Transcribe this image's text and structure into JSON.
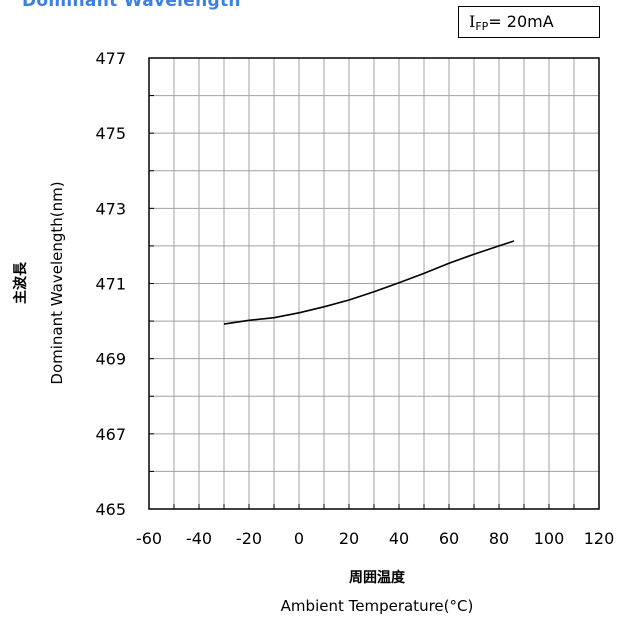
{
  "title": "Dominant Wavelength",
  "condition": {
    "symbol": "I",
    "subscript": "FP",
    "value": "= 20mA"
  },
  "chart_data": {
    "type": "line",
    "title": "Dominant Wavelength",
    "xlabel": "Ambient Temperature(°C)",
    "xlabel_jp": "周囲温度",
    "ylabel": "Dominant Wavelength(nm)",
    "ylabel_jp": "主波長",
    "xlim": [
      -60,
      120
    ],
    "ylim": [
      465,
      477
    ],
    "xticks": [
      -60,
      -40,
      -20,
      0,
      20,
      40,
      60,
      80,
      100,
      120
    ],
    "yticks": [
      465,
      467,
      469,
      471,
      473,
      475,
      477
    ],
    "grid": true,
    "series": [
      {
        "x": [
          -30,
          -20,
          -10,
          0,
          10,
          20,
          30,
          40,
          50,
          60,
          70,
          80,
          86
        ],
        "y": [
          469.92,
          470.02,
          470.09,
          470.22,
          470.38,
          470.56,
          470.78,
          471.02,
          471.27,
          471.54,
          471.78,
          472.0,
          472.13
        ]
      }
    ]
  }
}
